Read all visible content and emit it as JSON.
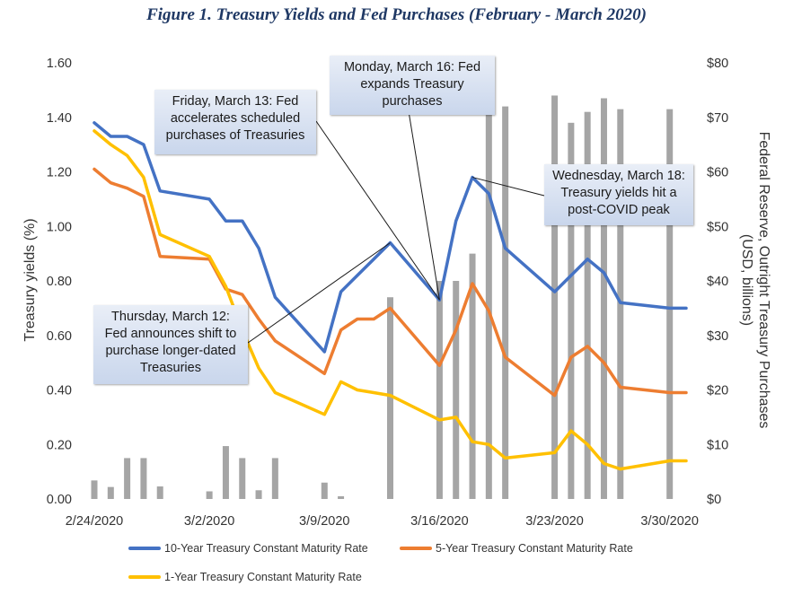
{
  "chart_data": {
    "type": "line",
    "title": "Figure 1. Treasury Yields and Fed Purchases (February - March 2020)",
    "ylabel": "Treasury yields (%)",
    "y2label_line1": "Federal Reserve, Outright Treasury Purchases",
    "y2label_line2": "(USD, billions)",
    "ylim": [
      0,
      1.6
    ],
    "y2lim": [
      0,
      80
    ],
    "xlim": [
      "2020-02-24",
      "2020-03-31"
    ],
    "x_ticks": [
      "2/24/2020",
      "3/2/2020",
      "3/9/2020",
      "3/16/2020",
      "3/23/2020",
      "3/30/2020"
    ],
    "y_ticks": [
      "0.00",
      "0.20",
      "0.40",
      "0.60",
      "0.80",
      "1.00",
      "1.20",
      "1.40",
      "1.60"
    ],
    "y2_ticks": [
      "$0",
      "$10",
      "$20",
      "$30",
      "$40",
      "$50",
      "$60",
      "$70",
      "$80"
    ],
    "grid": false,
    "legend_position": "bottom",
    "dates": [
      "2020-02-24",
      "2020-02-25",
      "2020-02-26",
      "2020-02-27",
      "2020-02-28",
      "2020-03-02",
      "2020-03-03",
      "2020-03-04",
      "2020-03-05",
      "2020-03-06",
      "2020-03-09",
      "2020-03-10",
      "2020-03-11",
      "2020-03-12",
      "2020-03-13",
      "2020-03-16",
      "2020-03-17",
      "2020-03-18",
      "2020-03-19",
      "2020-03-20",
      "2020-03-23",
      "2020-03-24",
      "2020-03-25",
      "2020-03-26",
      "2020-03-27",
      "2020-03-30",
      "2020-03-31"
    ],
    "series": [
      {
        "name": "10-Year Treasury Constant Maturity Rate",
        "color": "#4472c4",
        "values": [
          1.38,
          1.33,
          1.33,
          1.3,
          1.13,
          1.1,
          1.02,
          1.02,
          0.92,
          0.74,
          0.54,
          0.76,
          0.82,
          0.88,
          0.94,
          0.73,
          1.02,
          1.18,
          1.12,
          0.92,
          0.76,
          0.82,
          0.88,
          0.83,
          0.72,
          0.7,
          0.7
        ]
      },
      {
        "name": "5-Year Treasury Constant Maturity Rate",
        "color": "#ed7d31",
        "values": [
          1.21,
          1.16,
          1.14,
          1.11,
          0.89,
          0.88,
          0.77,
          0.75,
          0.66,
          0.58,
          0.46,
          0.62,
          0.66,
          0.66,
          0.7,
          0.49,
          0.62,
          0.79,
          0.69,
          0.52,
          0.38,
          0.52,
          0.56,
          0.5,
          0.41,
          0.39,
          0.39
        ]
      },
      {
        "name": "1-Year Treasury Constant Maturity Rate",
        "color": "#ffc000",
        "values": [
          1.35,
          1.3,
          1.26,
          1.18,
          0.97,
          0.89,
          0.78,
          0.62,
          0.48,
          0.39,
          0.31,
          0.43,
          0.4,
          0.39,
          0.38,
          0.29,
          0.3,
          0.21,
          0.2,
          0.15,
          0.17,
          0.25,
          0.2,
          0.13,
          0.11,
          0.14,
          0.14
        ]
      }
    ],
    "purchases": {
      "name": "Federal Reserve, Outright Treasury Purchases",
      "color": "#a5a5a5",
      "dates": [
        "2020-02-24",
        "2020-02-25",
        "2020-02-26",
        "2020-02-27",
        "2020-02-28",
        "2020-03-02",
        "2020-03-03",
        "2020-03-04",
        "2020-03-05",
        "2020-03-06",
        "2020-03-09",
        "2020-03-10",
        "2020-03-13",
        "2020-03-16",
        "2020-03-17",
        "2020-03-18",
        "2020-03-19",
        "2020-03-20",
        "2020-03-23",
        "2020-03-24",
        "2020-03-25",
        "2020-03-26",
        "2020-03-27",
        "2020-03-30"
      ],
      "values": [
        3.4,
        2.2,
        7.5,
        7.5,
        2.3,
        1.4,
        9.7,
        7.5,
        1.6,
        7.5,
        3.0,
        0.5,
        37.0,
        40.0,
        40.0,
        45.0,
        75.0,
        72.0,
        74.0,
        69.0,
        71.0,
        73.5,
        71.5,
        71.5
      ]
    },
    "annotations": [
      {
        "text": "Friday, March 13: Fed\naccelerates scheduled\npurchases of Treasuries"
      },
      {
        "text": "Monday, March 16: Fed\nexpands Treasury\npurchases"
      },
      {
        "text": "Wednesday, March 18:\nTreasury yields hit a\npost-COVID peak"
      },
      {
        "text": "Thursday, March 12:\nFed announces shift to\npurchase longer-dated\nTreasuries"
      }
    ]
  }
}
